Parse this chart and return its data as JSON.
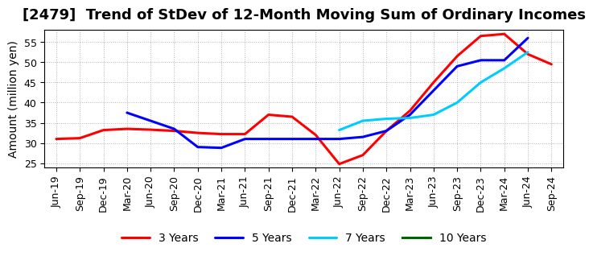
{
  "title": "[2479]  Trend of StDev of 12-Month Moving Sum of Ordinary Incomes",
  "ylabel": "Amount (million yen)",
  "background_color": "#ffffff",
  "grid_color": "#aaaaaa",
  "ylim": [
    24,
    58
  ],
  "yticks": [
    25,
    30,
    35,
    40,
    45,
    50,
    55
  ],
  "legend_colors": [
    "#ff0000",
    "#0000ff",
    "#00ccff",
    "#006600"
  ],
  "xtick_labels": [
    "Jun-19",
    "Sep-19",
    "Dec-19",
    "Mar-20",
    "Jun-20",
    "Sep-20",
    "Dec-20",
    "Mar-21",
    "Jun-21",
    "Sep-21",
    "Dec-21",
    "Mar-22",
    "Jun-22",
    "Sep-22",
    "Dec-22",
    "Mar-23",
    "Jun-23",
    "Sep-23",
    "Dec-23",
    "Mar-24",
    "Jun-24",
    "Sep-24"
  ],
  "series_3Y": {
    "color": "#ff0000",
    "label": "3 Years",
    "xi": [
      0,
      1,
      2,
      3,
      4,
      5,
      6,
      7,
      8,
      9,
      10,
      11,
      12,
      13,
      14,
      15,
      16,
      17,
      18,
      19,
      20,
      21
    ],
    "values": [
      31.0,
      31.2,
      33.2,
      33.5,
      33.3,
      33.0,
      32.5,
      32.2,
      32.2,
      37.0,
      36.5,
      32.0,
      24.8,
      27.0,
      33.0,
      38.0,
      45.0,
      51.5,
      56.5,
      57.0,
      52.0,
      49.5
    ]
  },
  "series_5Y": {
    "color": "#0000ff",
    "label": "5 Years",
    "xi": [
      3,
      4,
      5,
      6,
      7,
      8,
      9,
      10,
      11,
      12,
      13,
      14,
      15,
      16,
      17,
      18,
      19,
      20
    ],
    "values": [
      37.5,
      35.5,
      33.5,
      29.0,
      28.8,
      31.0,
      31.0,
      31.0,
      31.0,
      31.0,
      31.5,
      33.0,
      37.0,
      43.0,
      49.0,
      50.5,
      50.5,
      56.0
    ]
  },
  "series_7Y": {
    "color": "#00ccff",
    "label": "7 Years",
    "xi": [
      12,
      13,
      14,
      15,
      16,
      17,
      18,
      19,
      20
    ],
    "values": [
      33.2,
      35.5,
      36.0,
      36.2,
      37.0,
      40.0,
      45.0,
      48.5,
      52.5
    ]
  },
  "series_10Y": {
    "color": "#006600",
    "label": "10 Years",
    "xi": [],
    "values": []
  },
  "title_fontsize": 13,
  "axis_fontsize": 10,
  "tick_fontsize": 9,
  "linewidth": 2.2
}
